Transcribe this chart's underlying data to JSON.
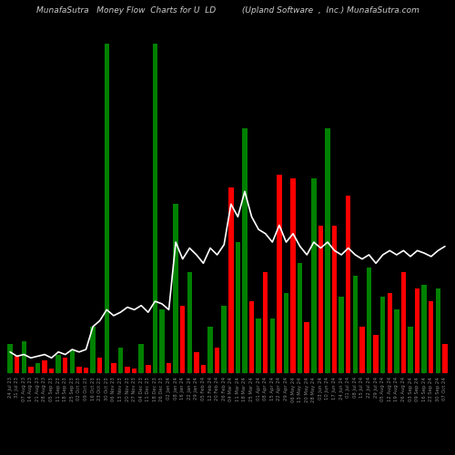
{
  "title_left": "MunafaSutra   Money Flow  Charts for U  LD",
  "title_right": "(Upland Software  ,  Inc.) MunafaSutra.com",
  "background_color": "#000000",
  "bar_colors": [
    "green",
    "red",
    "green",
    "red",
    "green",
    "red",
    "red",
    "green",
    "red",
    "green",
    "red",
    "red",
    "green",
    "red",
    "green",
    "red",
    "green",
    "red",
    "red",
    "green",
    "red",
    "green",
    "green",
    "red",
    "green",
    "red",
    "green",
    "red",
    "red",
    "green",
    "red",
    "green",
    "red",
    "green",
    "green",
    "red",
    "green",
    "red",
    "green",
    "red",
    "green",
    "red",
    "green",
    "red",
    "green",
    "red",
    "green",
    "red",
    "green",
    "red",
    "green",
    "red",
    "green",
    "red",
    "green",
    "red",
    "green",
    "red",
    "green",
    "red",
    "green",
    "red",
    "green",
    "red"
  ],
  "bar_heights": [
    35,
    20,
    38,
    8,
    12,
    15,
    5,
    22,
    18,
    28,
    8,
    6,
    55,
    18,
    390,
    12,
    30,
    8,
    5,
    35,
    10,
    390,
    75,
    12,
    200,
    80,
    120,
    25,
    10,
    55,
    30,
    80,
    220,
    155,
    290,
    85,
    65,
    120,
    65,
    235,
    95,
    230,
    130,
    60,
    230,
    175,
    290,
    175,
    90,
    210,
    115,
    55,
    125,
    45,
    90,
    95,
    75,
    120,
    55,
    100,
    105,
    85,
    100,
    35
  ],
  "line_values": [
    25,
    20,
    22,
    18,
    20,
    22,
    18,
    25,
    22,
    28,
    25,
    28,
    55,
    62,
    75,
    68,
    72,
    78,
    75,
    80,
    72,
    85,
    82,
    75,
    155,
    135,
    148,
    140,
    130,
    148,
    140,
    152,
    200,
    185,
    215,
    185,
    170,
    165,
    155,
    175,
    155,
    165,
    150,
    140,
    155,
    148,
    155,
    145,
    140,
    148,
    140,
    135,
    140,
    130,
    140,
    145,
    140,
    145,
    138,
    145,
    142,
    138,
    145,
    150
  ],
  "dates": [
    "24 Jul 23",
    "31 Jul 23",
    "07 Aug 23",
    "14 Aug 23",
    "21 Aug 23",
    "28 Aug 23",
    "05 Sep 23",
    "11 Sep 23",
    "18 Sep 23",
    "25 Sep 23",
    "02 Oct 23",
    "09 Oct 23",
    "16 Oct 23",
    "23 Oct 23",
    "30 Oct 23",
    "06 Nov 23",
    "13 Nov 23",
    "20 Nov 23",
    "27 Nov 23",
    "04 Dec 23",
    "11 Dec 23",
    "18 Dec 23",
    "26 Dec 23",
    "02 Jan 24",
    "08 Jan 24",
    "16 Jan 24",
    "22 Jan 24",
    "29 Jan 24",
    "05 Feb 24",
    "12 Feb 24",
    "20 Feb 24",
    "26 Feb 24",
    "04 Mar 24",
    "11 Mar 24",
    "18 Mar 24",
    "25 Mar 24",
    "01 Apr 24",
    "08 Apr 24",
    "15 Apr 24",
    "22 Apr 24",
    "29 Apr 24",
    "06 May 24",
    "13 May 24",
    "20 May 24",
    "28 May 24",
    "03 Jun 24",
    "10 Jun 24",
    "17 Jun 24",
    "24 Jun 24",
    "01 Jul 24",
    "08 Jul 24",
    "15 Jul 24",
    "22 Jul 24",
    "29 Jul 24",
    "05 Aug 24",
    "12 Aug 24",
    "19 Aug 24",
    "26 Aug 24",
    "03 Sep 24",
    "09 Sep 24",
    "16 Sep 24",
    "23 Sep 24",
    "30 Sep 24",
    "07 Oct 24"
  ],
  "line_color": "#ffffff",
  "line_width": 1.2,
  "title_color": "#cccccc",
  "title_fontsize": 6.5,
  "tick_label_color": "#888888",
  "tick_label_fontsize": 3.8,
  "bar_edge_color": "#111111",
  "ylim_max": 420
}
